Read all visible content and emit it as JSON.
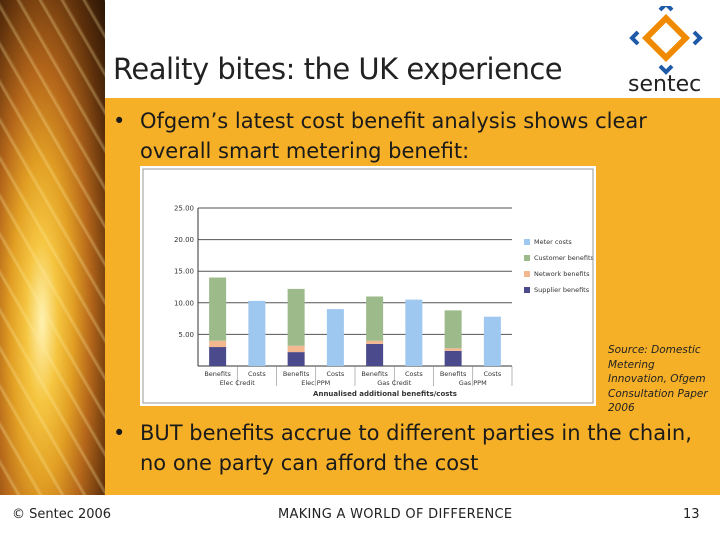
{
  "slide": {
    "title": "Reality bites: the UK experience",
    "logo_text": "sentec",
    "bullet_symbol": "•",
    "bullet1": "Ofgem’s latest cost benefit analysis shows clear overall smart metering benefit:",
    "bullet2": "BUT benefits accrue to different parties in the chain, no one party can afford the cost",
    "source": "Source: Domestic Metering Innovation, Ofgem Consultation Paper 2006",
    "footer_left": "© Sentec 2006",
    "footer_mid": "MAKING A WORLD OF DIFFERENCE",
    "footer_right": "13",
    "colors": {
      "accent": "#f5b028",
      "logo_orange": "#f08a00",
      "logo_blue": "#1e5aa8"
    }
  },
  "chart_data": {
    "type": "bar",
    "stacked": true,
    "title": "",
    "xlabel": "Annualised additional benefits/costs",
    "ylabel": "",
    "ylim": [
      0,
      25
    ],
    "yticks": [
      "25.00",
      "20.00",
      "15.00",
      "10.00",
      "5.00"
    ],
    "categories": [
      "Benefits",
      "Costs",
      "Benefits",
      "Costs",
      "Benefits",
      "Costs",
      "Benefits",
      "Costs"
    ],
    "groups": [
      {
        "label": "Elec Credit"
      },
      {
        "label": "Elec PPM"
      },
      {
        "label": "Gas Credit"
      },
      {
        "label": "Gas PPM"
      }
    ],
    "series": [
      {
        "name": "Supplier benefits",
        "color": "#4a4a8c",
        "values": [
          3.0,
          0,
          2.2,
          0,
          3.5,
          0,
          2.4,
          0
        ]
      },
      {
        "name": "Network benefits",
        "color": "#f4b890",
        "values": [
          1.0,
          0,
          1.0,
          0,
          0.5,
          0,
          0.4,
          0
        ]
      },
      {
        "name": "Customer benefits",
        "color": "#9dbb8a",
        "values": [
          10.0,
          0,
          9.0,
          0,
          7.0,
          0,
          6.0,
          0
        ]
      },
      {
        "name": "Meter costs",
        "color": "#9ec8f0",
        "values": [
          0,
          10.3,
          0,
          9.0,
          0,
          10.5,
          0,
          7.8
        ]
      }
    ],
    "legend_order": [
      "Meter costs",
      "Customer benefits",
      "Network benefits",
      "Supplier benefits"
    ],
    "legend_position": "right",
    "grid": "horizontal"
  }
}
